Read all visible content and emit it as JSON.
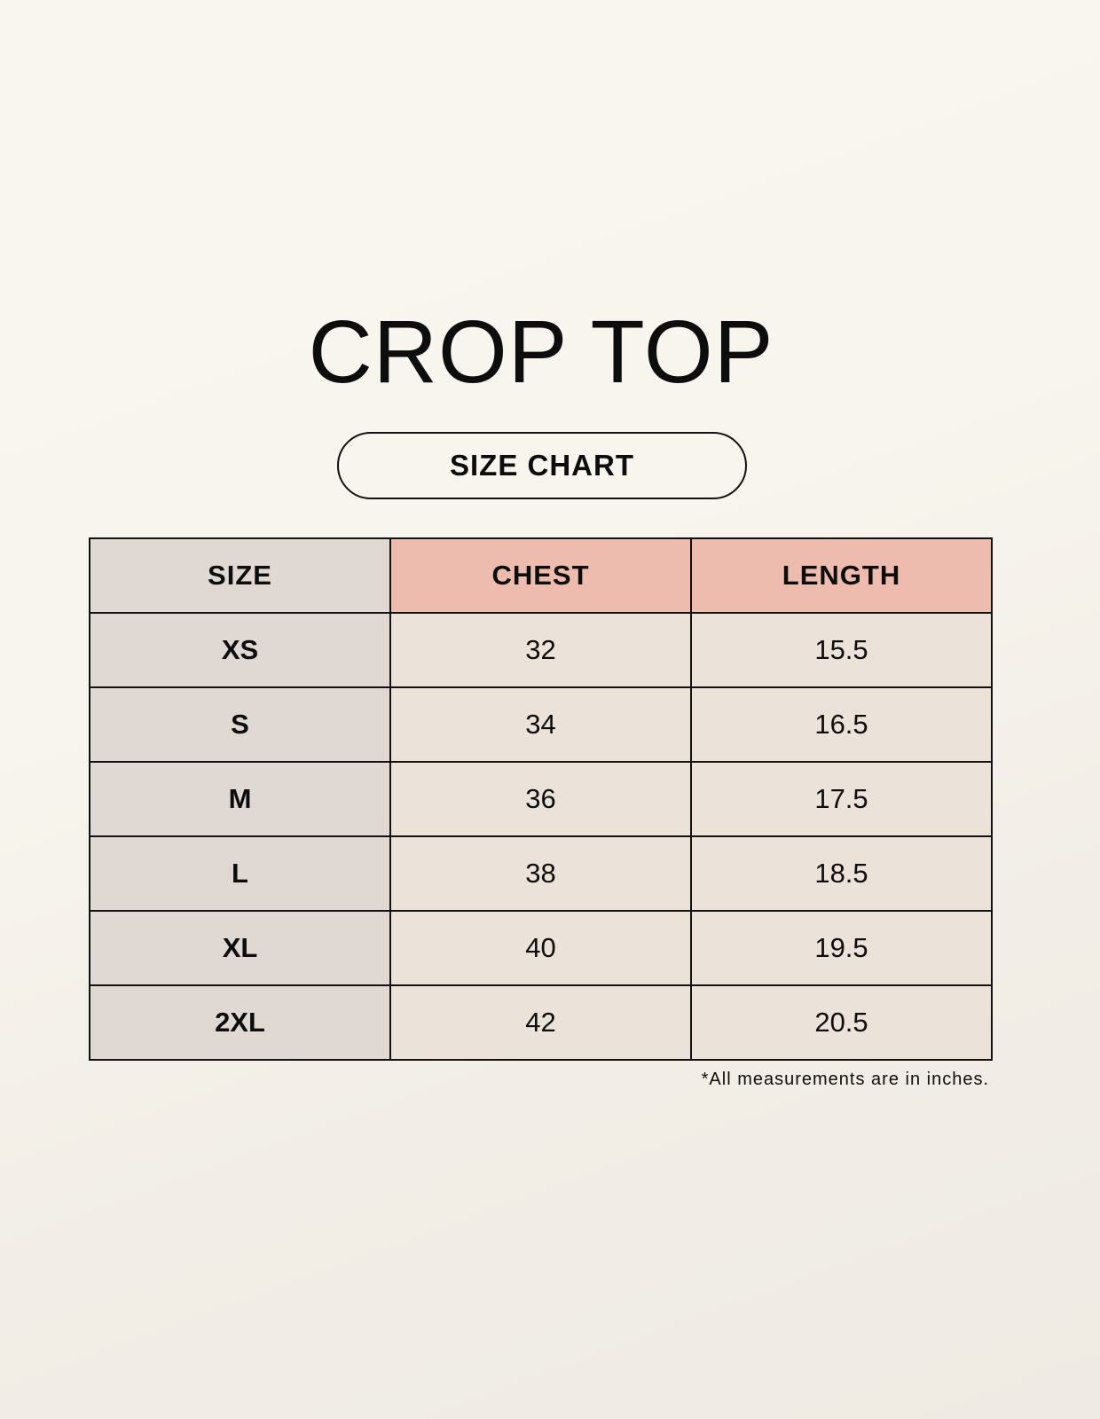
{
  "title": "CROP TOP",
  "subtitle": "SIZE CHART",
  "colors": {
    "size_column": "#e0d9d3",
    "header_accent": "#edbcae",
    "value_cells": "#ebe3d9",
    "background": "#f8f5ee"
  },
  "table": {
    "headers": [
      "SIZE",
      "CHEST",
      "LENGTH"
    ],
    "rows": [
      {
        "size": "XS",
        "chest": "32",
        "length": "15.5"
      },
      {
        "size": "S",
        "chest": "34",
        "length": "16.5"
      },
      {
        "size": "M",
        "chest": "36",
        "length": "17.5"
      },
      {
        "size": "L",
        "chest": "38",
        "length": "18.5"
      },
      {
        "size": "XL",
        "chest": "40",
        "length": "19.5"
      },
      {
        "size": "2XL",
        "chest": "42",
        "length": "20.5"
      }
    ]
  },
  "footnote": "*All measurements are in inches."
}
